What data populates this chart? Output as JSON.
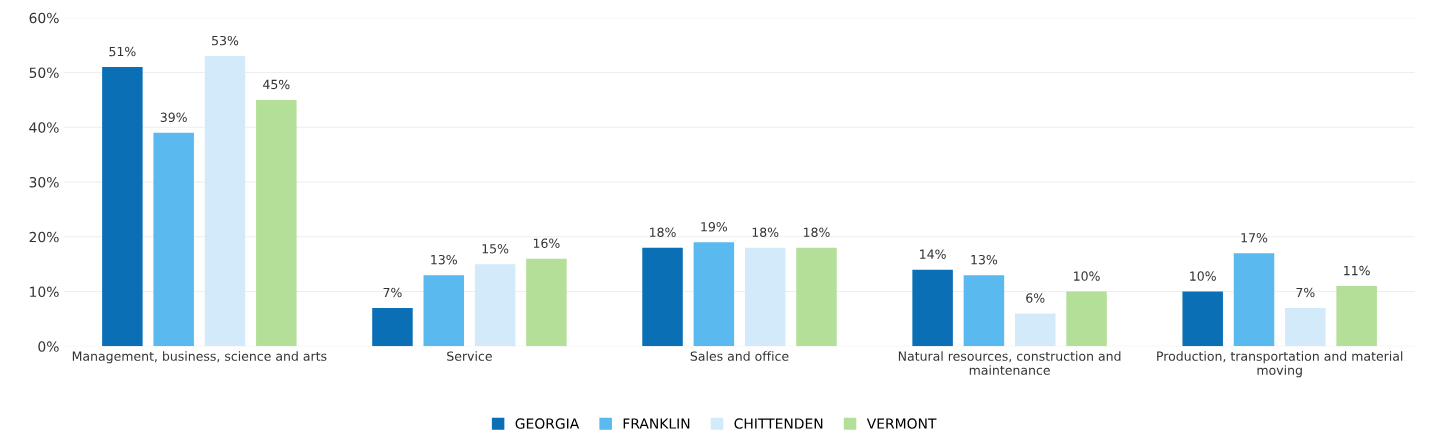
{
  "chart_data": {
    "type": "bar",
    "categories": [
      "Management, business, science and arts",
      "Service",
      "Sales and office",
      "Natural resources, construction and\nmaintenance",
      "Production, transportation and material\nmoving"
    ],
    "series": [
      {
        "name": "GEORGIA",
        "color": "#0b6fb6",
        "values": [
          51,
          7,
          18,
          14,
          10
        ],
        "value_labels": [
          "51%",
          "7%",
          "18%",
          "14%",
          "10%"
        ]
      },
      {
        "name": "FRANKLIN",
        "color": "#5ab9ee",
        "values": [
          39,
          13,
          19,
          13,
          17
        ],
        "value_labels": [
          "39%",
          "13%",
          "19%",
          "13%",
          "17%"
        ]
      },
      {
        "name": "CHITTENDEN",
        "color": "#d3eafa",
        "values": [
          53,
          15,
          18,
          6,
          7
        ],
        "value_labels": [
          "53%",
          "15%",
          "18%",
          "6%",
          "7%"
        ]
      },
      {
        "name": "VERMONT",
        "color": "#b4df99",
        "values": [
          45,
          16,
          18,
          10,
          11
        ],
        "value_labels": [
          "45%",
          "16%",
          "18%",
          "10%",
          "11%"
        ]
      }
    ],
    "ylim": [
      0,
      60
    ],
    "yticks": [
      {
        "value": 0,
        "label": "0%"
      },
      {
        "value": 10,
        "label": "10%"
      },
      {
        "value": 20,
        "label": "20%"
      },
      {
        "value": 30,
        "label": "30%"
      },
      {
        "value": 40,
        "label": "40%"
      },
      {
        "value": 50,
        "label": "50%"
      },
      {
        "value": 60,
        "label": "60%"
      }
    ],
    "grid": "y",
    "legend": "bottom"
  }
}
